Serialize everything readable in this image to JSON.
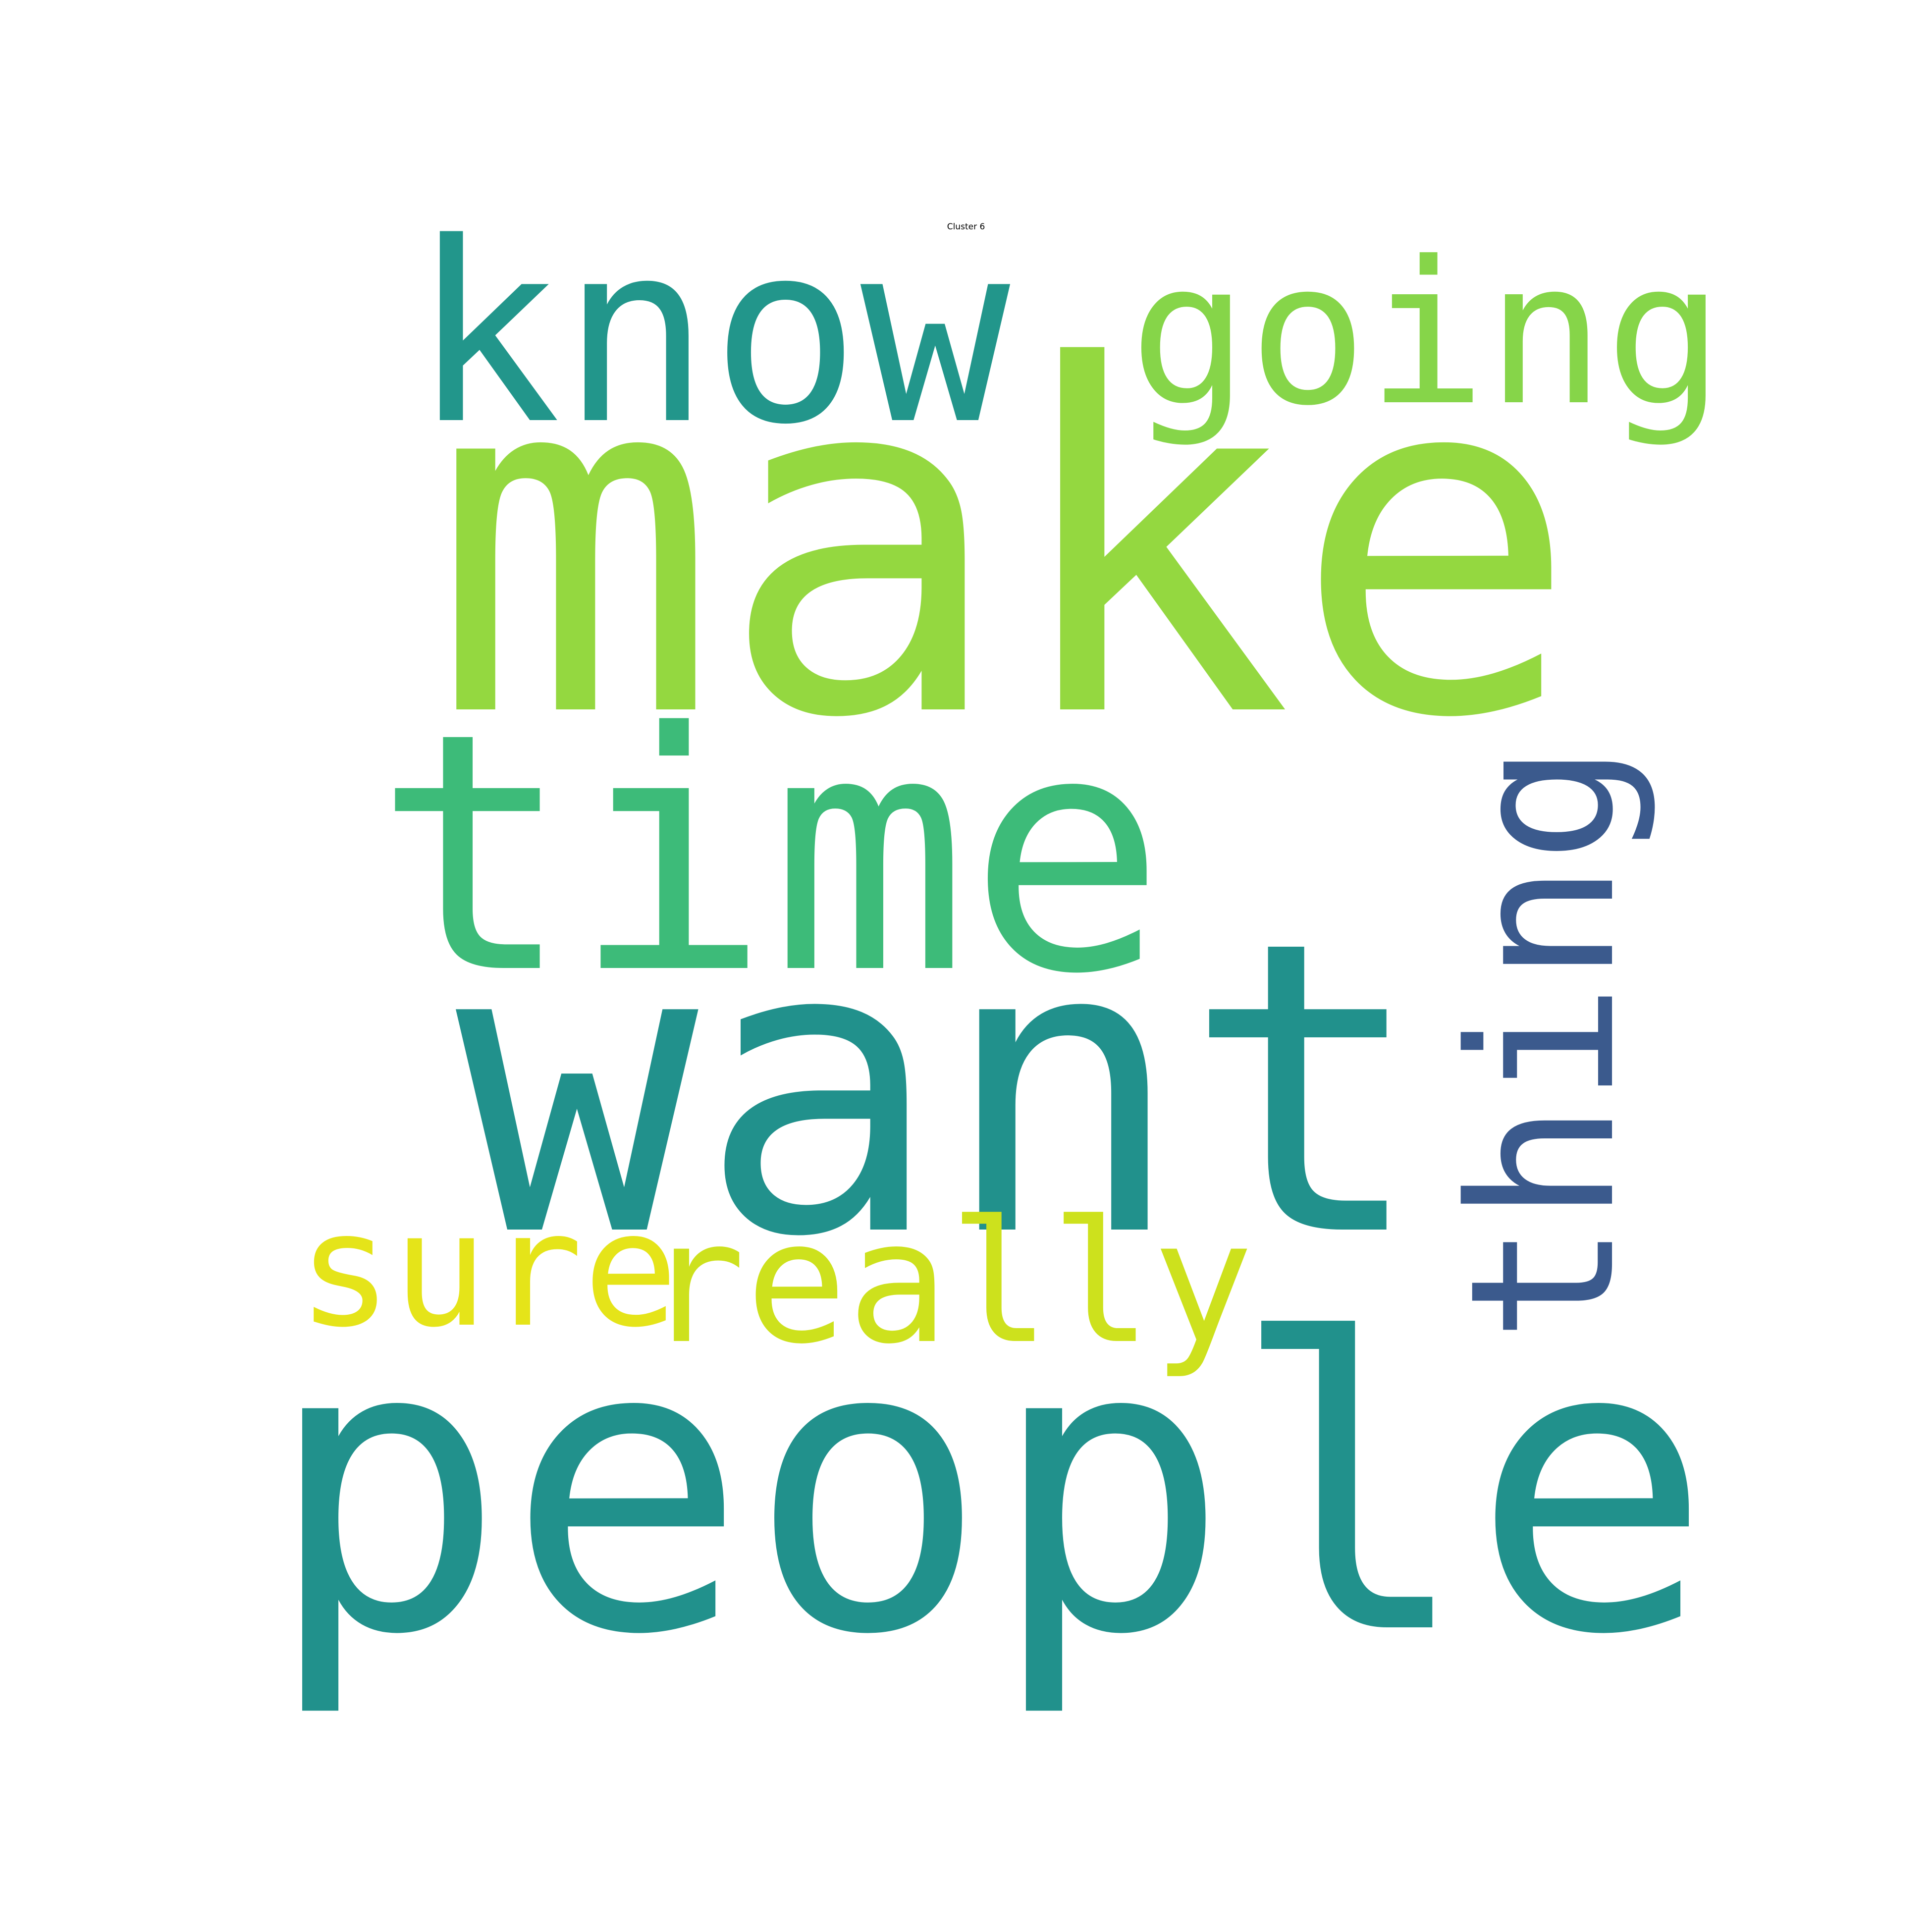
{
  "title": "Cluster 6",
  "words": [
    {
      "text": "make",
      "color": "#94d840",
      "orientation": "horizontal"
    },
    {
      "text": "people",
      "color": "#21918c",
      "orientation": "horizontal"
    },
    {
      "text": "want",
      "color": "#21918c",
      "orientation": "horizontal"
    },
    {
      "text": "time",
      "color": "#3dbb79",
      "orientation": "horizontal"
    },
    {
      "text": "know",
      "color": "#22968b",
      "orientation": "horizontal"
    },
    {
      "text": "going",
      "color": "#86d549",
      "orientation": "horizontal"
    },
    {
      "text": "thing",
      "color": "#3b5a8d",
      "orientation": "vertical"
    },
    {
      "text": "sure",
      "color": "#e5e419",
      "orientation": "horizontal"
    },
    {
      "text": "really",
      "color": "#cde11d",
      "orientation": "horizontal"
    }
  ]
}
